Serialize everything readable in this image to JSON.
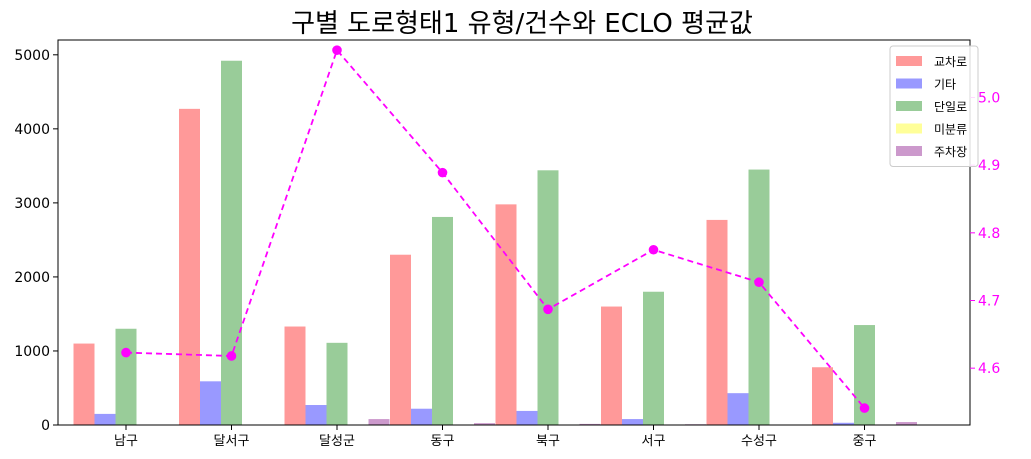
{
  "chart_data": {
    "type": "bar",
    "title": "구별 도로형태1 유형/건수와 ECLO 평균값",
    "xlabel": "",
    "ylabel": "",
    "categories": [
      "남구",
      "달서구",
      "달성군",
      "동구",
      "북구",
      "서구",
      "수성구",
      "중구"
    ],
    "ylim": [
      0,
      5200
    ],
    "yticks": [
      0,
      1000,
      2000,
      3000,
      4000,
      5000
    ],
    "series": [
      {
        "name": "교차로",
        "color": "#ff9999",
        "values": [
          1100,
          4270,
          1330,
          2300,
          2980,
          1600,
          2770,
          780
        ]
      },
      {
        "name": "기타",
        "color": "#9999ff",
        "values": [
          150,
          590,
          270,
          220,
          190,
          80,
          430,
          30
        ]
      },
      {
        "name": "단일로",
        "color": "#99cc99",
        "values": [
          1300,
          4920,
          1110,
          2810,
          3440,
          1800,
          3450,
          1350
        ]
      },
      {
        "name": "미분류",
        "color": "#ffff99",
        "values": [
          0,
          0,
          0,
          0,
          0,
          0,
          0,
          0
        ]
      },
      {
        "name": "주차장",
        "color": "#cc99cc",
        "values": [
          0,
          0,
          80,
          25,
          15,
          10,
          0,
          40
        ]
      }
    ],
    "secondary_axis": {
      "type": "line",
      "color": "#ff00ff",
      "style": "dashed",
      "values": [
        4.623,
        4.618,
        5.07,
        4.889,
        4.687,
        4.775,
        4.727,
        4.541
      ],
      "ylim": [
        4.516,
        5.085
      ],
      "yticks": [
        "4.6",
        "4.7",
        "4.8",
        "4.9",
        "5.0"
      ]
    },
    "legend_position": "top-right",
    "grid": false
  }
}
